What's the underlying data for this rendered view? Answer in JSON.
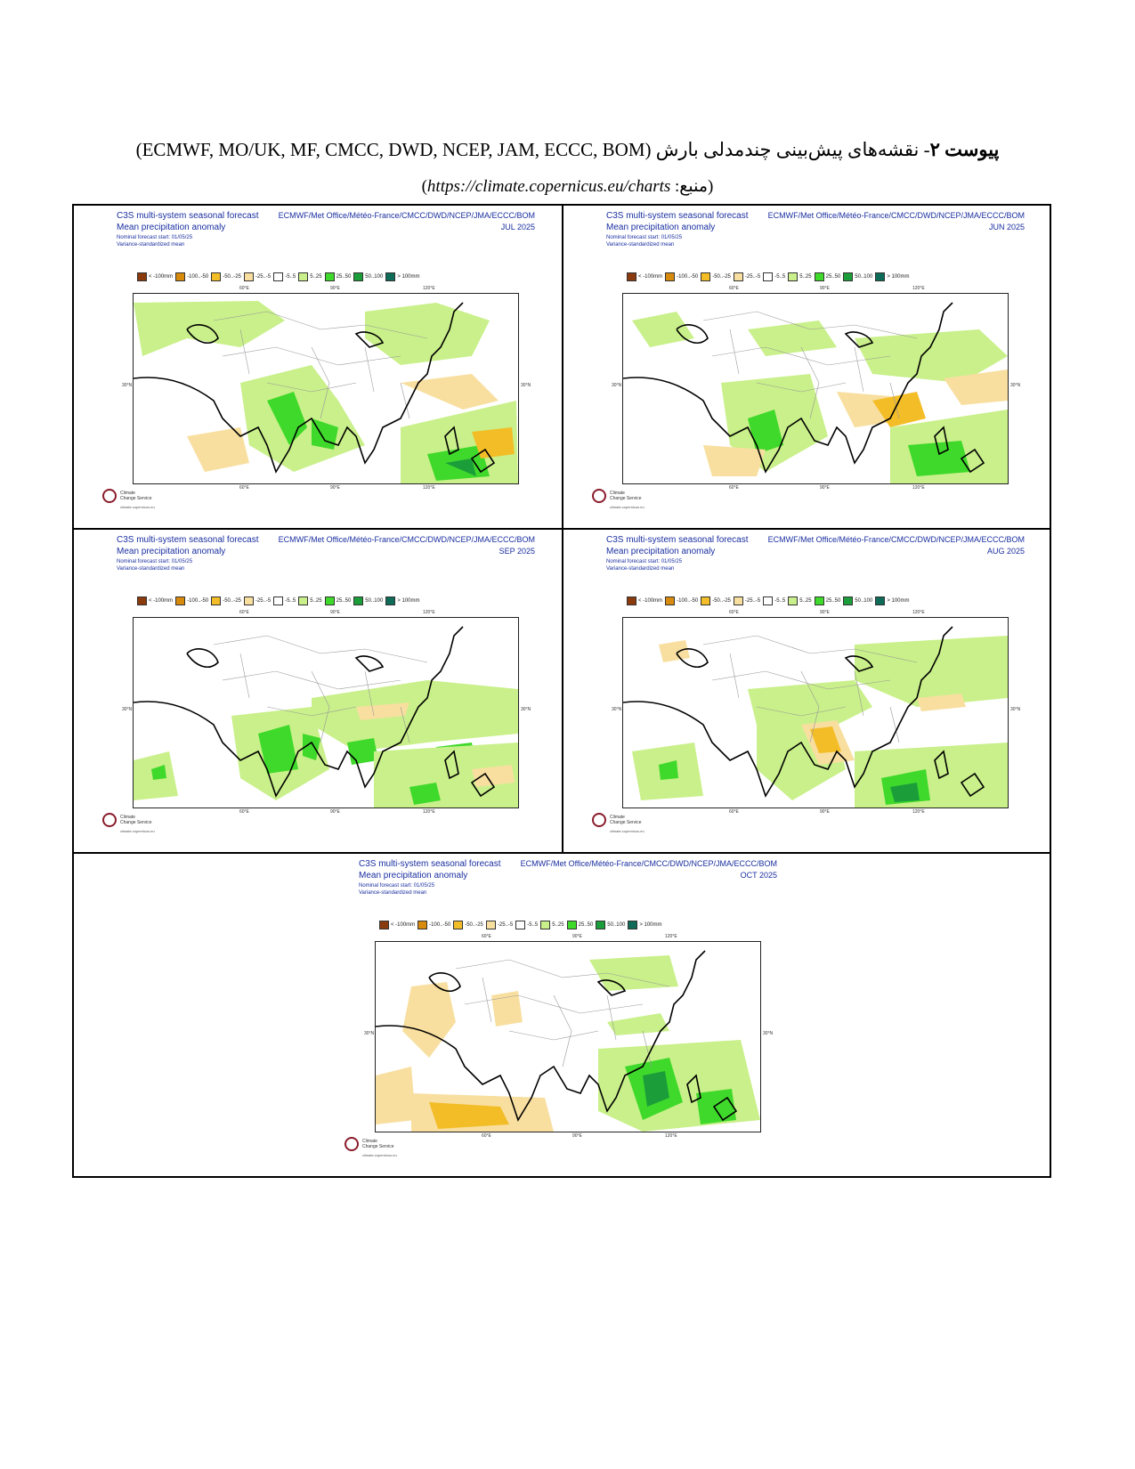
{
  "caption": {
    "label_bold": "پیوست ۲",
    "label_rest": "- نقشه‌های پیش‌بینی چندمدلی بارش",
    "models": "(ECMWF, MO/UK, MF, CMCC, DWD, NCEP, JAM, ECCC, BOM)",
    "source_prefix": "(منبع: ",
    "source_url": "https://climate.copernicus.eu/charts",
    "source_suffix": ")"
  },
  "panel_common": {
    "title": "C3S multi-system seasonal forecast",
    "subtitle": "Mean precipitation anomaly",
    "nominal": "Nominal forecast start: 01/05/25",
    "variance": "Variance-standardized mean",
    "models": "ECMWF/Met Office/Météo-France/CMCC/DWD/NCEP/JMA/ECCC/BOM",
    "lon_labels": [
      "60°E",
      "90°E",
      "120°E"
    ],
    "lat_label": "30°N",
    "logo_text_1": "Climate",
    "logo_text_2": "Change Service",
    "logo_url": "climate.copernicus.eu"
  },
  "legend": [
    {
      "label": "< -100mm",
      "color": "#8b3a0e"
    },
    {
      "label": "-100..-50",
      "color": "#d88a0c"
    },
    {
      "label": "-50..-25",
      "color": "#f3bd27"
    },
    {
      "label": "-25..-5",
      "color": "#f8dfa0"
    },
    {
      "label": "-5..5",
      "color": "#ffffff"
    },
    {
      "label": "5..25",
      "color": "#c9f08a"
    },
    {
      "label": "25..50",
      "color": "#3fd92b"
    },
    {
      "label": "50..100",
      "color": "#1b9e3a"
    },
    {
      "label": "> 100mm",
      "color": "#0d6b58"
    }
  ],
  "panels": [
    {
      "id": "jul",
      "month": "JUL 2025"
    },
    {
      "id": "jun",
      "month": "JUN 2025"
    },
    {
      "id": "sep",
      "month": "SEP 2025"
    },
    {
      "id": "aug",
      "month": "AUG 2025"
    },
    {
      "id": "oct",
      "month": "OCT 2025"
    }
  ]
}
